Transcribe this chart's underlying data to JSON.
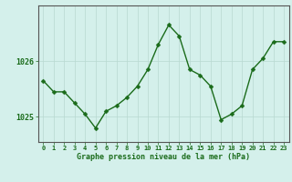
{
  "x": [
    0,
    1,
    2,
    3,
    4,
    5,
    6,
    7,
    8,
    9,
    10,
    11,
    12,
    13,
    14,
    15,
    16,
    17,
    18,
    19,
    20,
    21,
    22,
    23
  ],
  "y": [
    1025.65,
    1025.45,
    1025.45,
    1025.25,
    1025.05,
    1024.8,
    1025.1,
    1025.2,
    1025.35,
    1025.55,
    1025.85,
    1026.3,
    1026.65,
    1026.45,
    1025.85,
    1025.75,
    1025.55,
    1024.95,
    1025.05,
    1025.2,
    1025.85,
    1026.05,
    1026.35,
    1026.35
  ],
  "line_color": "#1a6b1a",
  "marker_color": "#1a6b1a",
  "bg_color": "#d4f0eb",
  "plot_bg_color": "#d4f0eb",
  "grid_color_major": "#b8d8d0",
  "grid_color_minor": "#c8e8e0",
  "xlabel": "Graphe pression niveau de la mer (hPa)",
  "xlabel_color": "#1a6b1a",
  "tick_color": "#1a6b1a",
  "ytick_labels": [
    "1026",
    "1025"
  ],
  "ytick_values": [
    1026.0,
    1025.0
  ],
  "ylim": [
    1024.55,
    1027.0
  ],
  "xlim": [
    -0.5,
    23.5
  ],
  "xtick_labels": [
    "0",
    "1",
    "2",
    "3",
    "4",
    "5",
    "6",
    "7",
    "8",
    "9",
    "10",
    "11",
    "12",
    "13",
    "14",
    "15",
    "16",
    "17",
    "18",
    "19",
    "20",
    "21",
    "22",
    "23"
  ],
  "marker_size": 2.5,
  "line_width": 1.0
}
